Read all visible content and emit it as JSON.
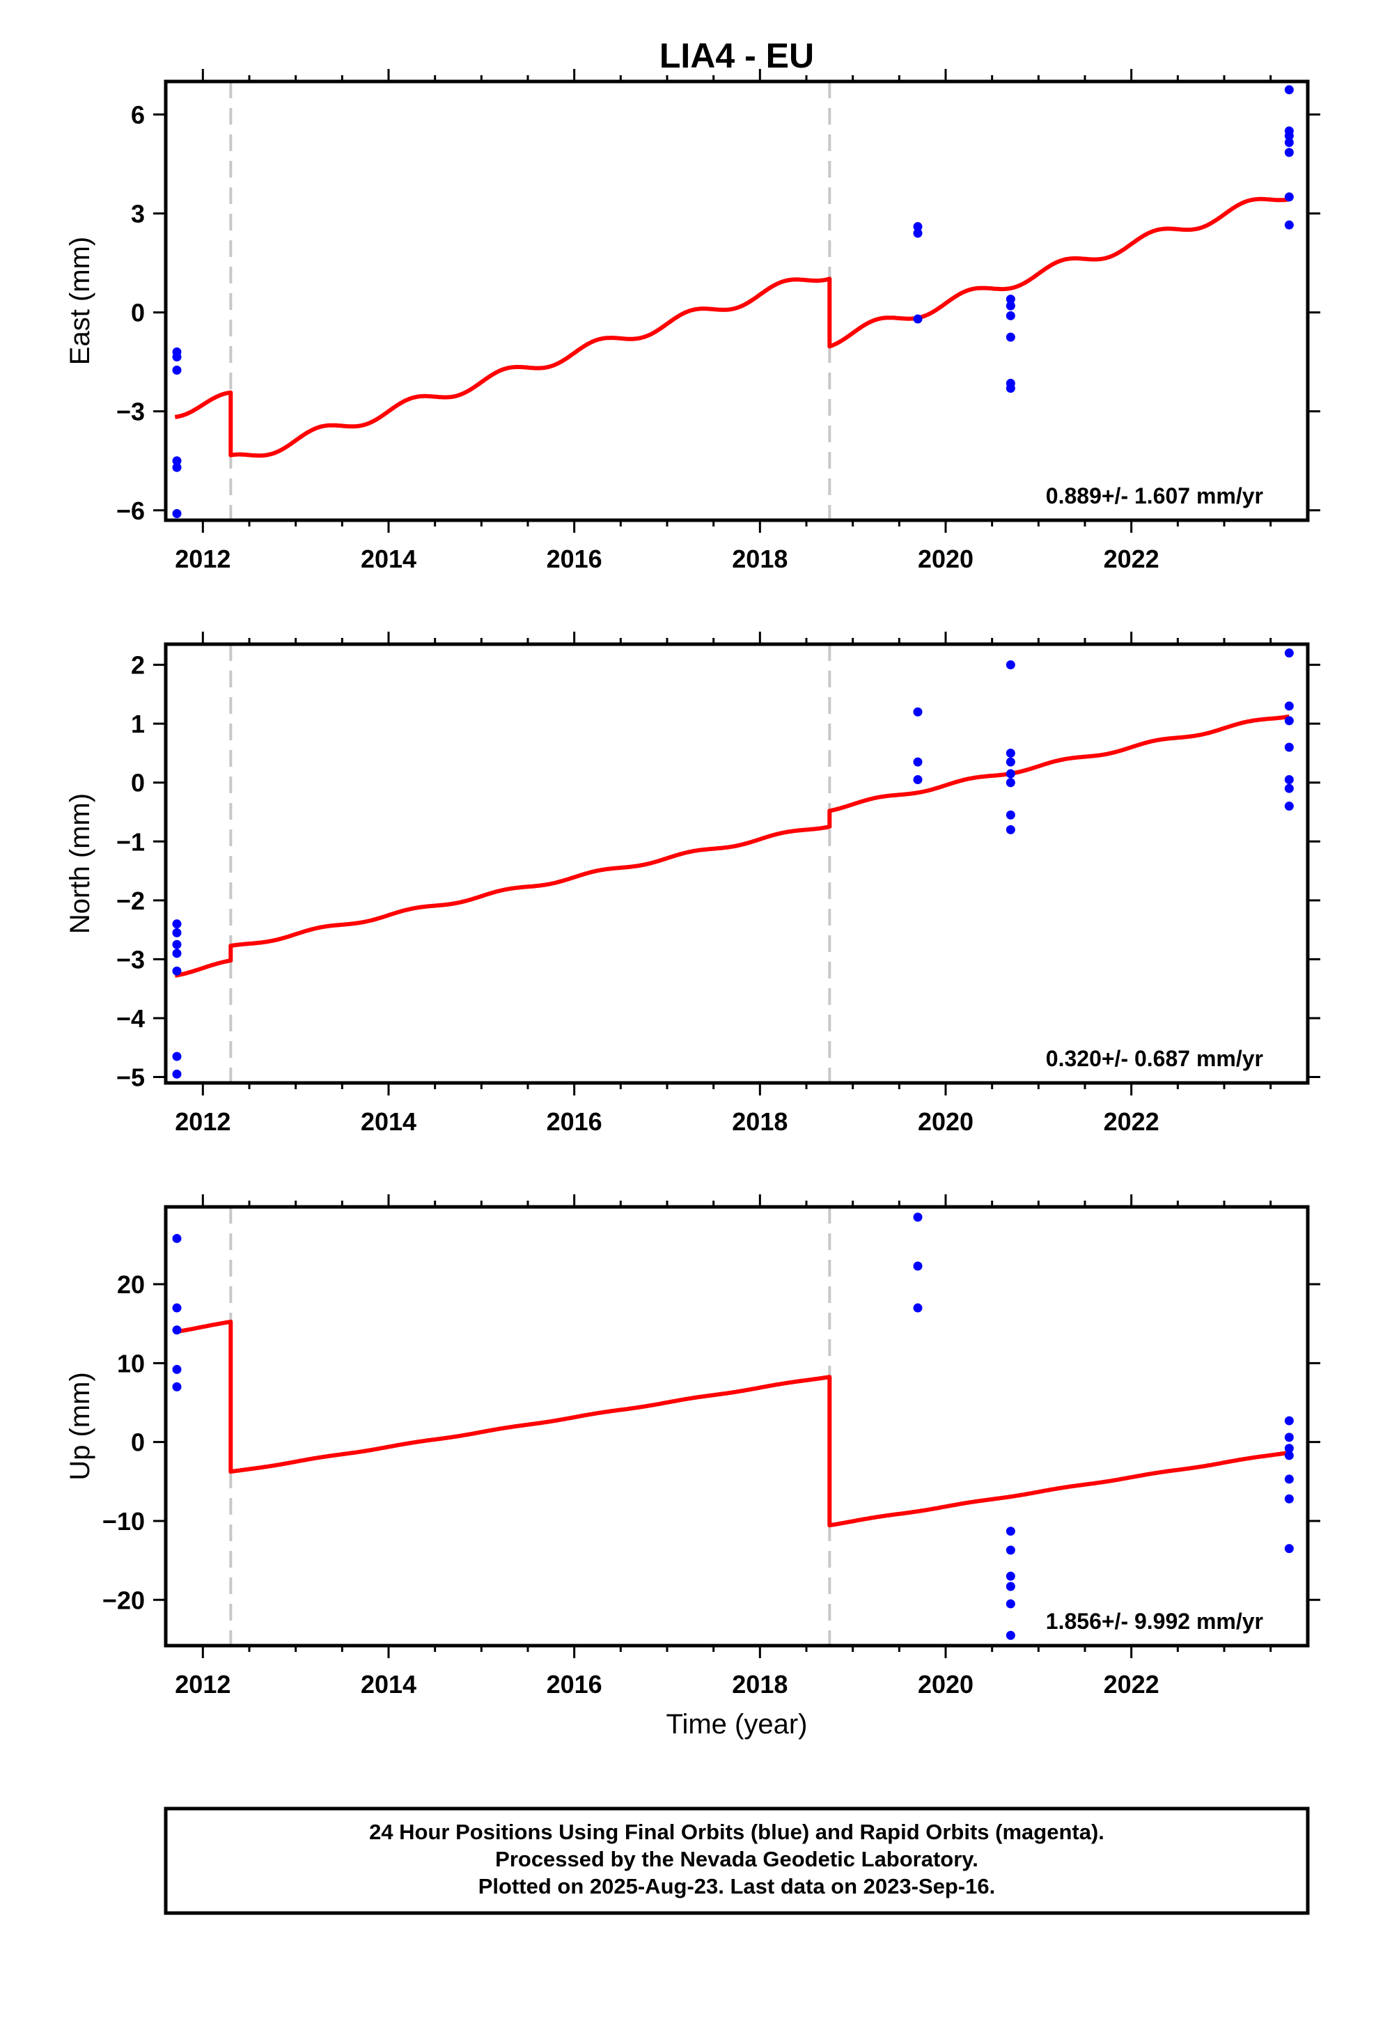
{
  "chart_data": [
    {
      "type": "scatter",
      "title": "LIA4 - EU",
      "xlabel": "",
      "ylabel": "East (mm)",
      "xlim": [
        2011.6,
        2023.9
      ],
      "ylim": [
        -6.3,
        7.0
      ],
      "x_ticks": [
        2012,
        2014,
        2016,
        2018,
        2020,
        2022
      ],
      "x_tick_labels": [
        "2012",
        "2014",
        "2016",
        "2018",
        "2020",
        "2022"
      ],
      "y_ticks": [
        6,
        3,
        0,
        -3,
        -6
      ],
      "y_tick_labels": [
        "6",
        "3",
        "0",
        "−3",
        "−6"
      ],
      "rate_label": "0.889+/- 1.607 mm/yr",
      "offsets": [
        2012.3,
        2018.75
      ],
      "model": {
        "name": "",
        "color": "#ff0000",
        "rate": 0.889,
        "annual_amplitude": 0.18,
        "segments": [
          {
            "x_start": 2011.7,
            "x_end": 2012.3,
            "y_start": -3.0,
            "y_end": -2.6
          },
          {
            "x_start": 2012.3,
            "x_end": 2018.75,
            "y_start": -4.5,
            "y_end": 1.2
          },
          {
            "x_start": 2018.75,
            "x_end": 2023.7,
            "y_start": -0.85,
            "y_end": 3.6
          }
        ]
      },
      "series": [
        {
          "name": "",
          "color": "#0000ff",
          "points": [
            {
              "x": 2011.72,
              "y": -1.2
            },
            {
              "x": 2011.72,
              "y": -1.35
            },
            {
              "x": 2011.72,
              "y": -1.75
            },
            {
              "x": 2011.72,
              "y": -4.5
            },
            {
              "x": 2011.72,
              "y": -4.7
            },
            {
              "x": 2011.72,
              "y": -6.1
            },
            {
              "x": 2019.7,
              "y": 2.6
            },
            {
              "x": 2019.7,
              "y": 2.4
            },
            {
              "x": 2019.7,
              "y": -0.2
            },
            {
              "x": 2020.7,
              "y": 0.4
            },
            {
              "x": 2020.7,
              "y": 0.2
            },
            {
              "x": 2020.7,
              "y": -0.1
            },
            {
              "x": 2020.7,
              "y": -0.75
            },
            {
              "x": 2020.7,
              "y": -2.15
            },
            {
              "x": 2020.7,
              "y": -2.3
            },
            {
              "x": 2023.7,
              "y": 6.75
            },
            {
              "x": 2023.7,
              "y": 5.5
            },
            {
              "x": 2023.7,
              "y": 5.35
            },
            {
              "x": 2023.7,
              "y": 5.15
            },
            {
              "x": 2023.7,
              "y": 4.85
            },
            {
              "x": 2023.7,
              "y": 3.5
            },
            {
              "x": 2023.7,
              "y": 2.65
            }
          ]
        }
      ]
    },
    {
      "type": "scatter",
      "title": "",
      "xlabel": "",
      "ylabel": "North (mm)",
      "xlim": [
        2011.6,
        2023.9
      ],
      "ylim": [
        -5.1,
        2.35
      ],
      "x_ticks": [
        2012,
        2014,
        2016,
        2018,
        2020,
        2022
      ],
      "x_tick_labels": [
        "2012",
        "2014",
        "2016",
        "2018",
        "2020",
        "2022"
      ],
      "y_ticks": [
        2,
        1,
        0,
        -1,
        -2,
        -3,
        -4,
        -5
      ],
      "y_tick_labels": [
        "2",
        "1",
        "0",
        "−1",
        "−2",
        "−3",
        "−4",
        "−5"
      ],
      "rate_label": "0.320+/- 0.687 mm/yr",
      "offsets": [
        2012.3,
        2018.75
      ],
      "model": {
        "name": "",
        "color": "#ff0000",
        "rate": 0.32,
        "annual_amplitude": 0.03,
        "segments": [
          {
            "x_start": 2011.7,
            "x_end": 2012.3,
            "y_start": -3.25,
            "y_end": -3.05
          },
          {
            "x_start": 2012.3,
            "x_end": 2018.75,
            "y_start": -2.8,
            "y_end": -0.72
          },
          {
            "x_start": 2018.75,
            "x_end": 2023.7,
            "y_start": -0.45,
            "y_end": 1.15
          }
        ]
      },
      "series": [
        {
          "name": "",
          "color": "#0000ff",
          "points": [
            {
              "x": 2011.72,
              "y": -2.4
            },
            {
              "x": 2011.72,
              "y": -2.55
            },
            {
              "x": 2011.72,
              "y": -2.75
            },
            {
              "x": 2011.72,
              "y": -2.9
            },
            {
              "x": 2011.72,
              "y": -3.2
            },
            {
              "x": 2011.72,
              "y": -4.65
            },
            {
              "x": 2011.72,
              "y": -4.95
            },
            {
              "x": 2019.7,
              "y": 1.2
            },
            {
              "x": 2019.7,
              "y": 0.35
            },
            {
              "x": 2019.7,
              "y": 0.05
            },
            {
              "x": 2020.7,
              "y": 2.0
            },
            {
              "x": 2020.7,
              "y": 0.5
            },
            {
              "x": 2020.7,
              "y": 0.35
            },
            {
              "x": 2020.7,
              "y": 0.15
            },
            {
              "x": 2020.7,
              "y": 0.0
            },
            {
              "x": 2020.7,
              "y": -0.55
            },
            {
              "x": 2020.7,
              "y": -0.8
            },
            {
              "x": 2023.7,
              "y": 2.2
            },
            {
              "x": 2023.7,
              "y": 1.3
            },
            {
              "x": 2023.7,
              "y": 1.05
            },
            {
              "x": 2023.7,
              "y": 0.6
            },
            {
              "x": 2023.7,
              "y": 0.05
            },
            {
              "x": 2023.7,
              "y": -0.1
            },
            {
              "x": 2023.7,
              "y": -0.4
            }
          ]
        }
      ]
    },
    {
      "type": "scatter",
      "title": "",
      "xlabel": "Time (year)",
      "ylabel": "Up (mm)",
      "xlim": [
        2011.6,
        2023.9
      ],
      "ylim": [
        -25.8,
        29.8
      ],
      "x_ticks": [
        2012,
        2014,
        2016,
        2018,
        2020,
        2022
      ],
      "x_tick_labels": [
        "2012",
        "2014",
        "2016",
        "2018",
        "2020",
        "2022"
      ],
      "y_ticks": [
        20,
        10,
        0,
        -10,
        -20
      ],
      "y_tick_labels": [
        "20",
        "10",
        "0",
        "−10",
        "−20"
      ],
      "rate_label": "1.856+/- 9.992 mm/yr",
      "offsets": [
        2012.3,
        2018.75
      ],
      "model": {
        "name": "",
        "color": "#ff0000",
        "rate": 1.856,
        "annual_amplitude": 0.05,
        "segments": [
          {
            "x_start": 2011.7,
            "x_end": 2012.3,
            "y_start": 14.0,
            "y_end": 15.2
          },
          {
            "x_start": 2012.3,
            "x_end": 2018.75,
            "y_start": -3.8,
            "y_end": 8.3
          },
          {
            "x_start": 2018.75,
            "x_end": 2023.7,
            "y_start": -10.5,
            "y_end": -1.3
          }
        ]
      },
      "series": [
        {
          "name": "",
          "color": "#0000ff",
          "points": [
            {
              "x": 2011.72,
              "y": 25.8
            },
            {
              "x": 2011.72,
              "y": 17.0
            },
            {
              "x": 2011.72,
              "y": 14.2
            },
            {
              "x": 2011.72,
              "y": 9.2
            },
            {
              "x": 2011.72,
              "y": 7.0
            },
            {
              "x": 2019.7,
              "y": 28.5
            },
            {
              "x": 2019.7,
              "y": 22.3
            },
            {
              "x": 2019.7,
              "y": 17.0
            },
            {
              "x": 2020.7,
              "y": -11.3
            },
            {
              "x": 2020.7,
              "y": -13.7
            },
            {
              "x": 2020.7,
              "y": -17.0
            },
            {
              "x": 2020.7,
              "y": -18.3
            },
            {
              "x": 2020.7,
              "y": -20.5
            },
            {
              "x": 2020.7,
              "y": -24.5
            },
            {
              "x": 2023.7,
              "y": 2.7
            },
            {
              "x": 2023.7,
              "y": 0.6
            },
            {
              "x": 2023.7,
              "y": -0.8
            },
            {
              "x": 2023.7,
              "y": -1.7
            },
            {
              "x": 2023.7,
              "y": -4.7
            },
            {
              "x": 2023.7,
              "y": -7.2
            },
            {
              "x": 2023.7,
              "y": -13.5
            }
          ]
        }
      ]
    }
  ],
  "footer": {
    "line1": "24 Hour Positions Using Final Orbits (blue) and Rapid Orbits (magenta).",
    "line2": "Processed by the Nevada Geodetic Laboratory.",
    "line3": "Plotted on 2025-Aug-23. Last data on 2023-Sep-16."
  }
}
